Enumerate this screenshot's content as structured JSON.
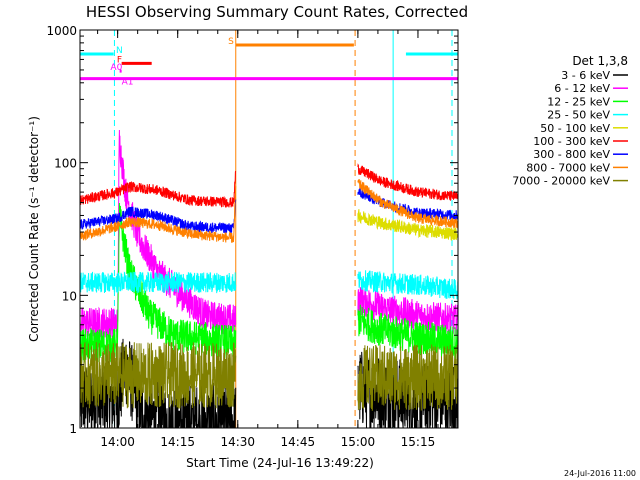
{
  "chart_data": {
    "type": "line",
    "title": "HESSI Observing Summary Count Rates, Corrected",
    "xlabel": "Start Time (24-Jul-16 13:49:22)",
    "ylabel": "Corrected Count Rate (s⁻¹ detector⁻¹)",
    "ylog": true,
    "xlim_minutes": [
      -4.4,
      34.4
    ],
    "ylim": [
      1,
      1000
    ],
    "x_ticks": [
      {
        "m": 0,
        "label": "14:00"
      },
      {
        "m": 15,
        "label": "14:15"
      },
      {
        "m": 30,
        "label": "14:30"
      },
      {
        "m": 45,
        "label": "14:45"
      },
      {
        "m": 60,
        "label": "15:00"
      },
      {
        "m": 75,
        "label": "15:15"
      }
    ],
    "y_ticks": [
      {
        "v": 1,
        "label": "1"
      },
      {
        "v": 10,
        "label": "10"
      },
      {
        "v": 100,
        "label": "100"
      },
      {
        "v": 1000,
        "label": "1000"
      }
    ],
    "legend_title": "Det 1,3,8",
    "legend_placement": "right",
    "series": [
      {
        "name": "3 - 6 keV",
        "color": "#000000",
        "seg1": [
          [
            -9.4,
            1.6
          ],
          [
            0,
            1.6
          ],
          [
            2,
            3
          ],
          [
            4,
            2
          ],
          [
            6,
            1.3
          ],
          [
            8,
            1.2
          ],
          [
            14,
            1.1
          ],
          [
            29.5,
            1.1
          ]
        ],
        "seg2": [
          [
            60,
            2.0
          ],
          [
            66,
            1.8
          ],
          [
            75,
            1.6
          ],
          [
            85,
            1.6
          ]
        ],
        "noise": 0.3
      },
      {
        "name": "6 - 12 keV",
        "color": "#ff00ff",
        "seg1": [
          [
            -9.4,
            6.2
          ],
          [
            0,
            6.2
          ],
          [
            0.4,
            150
          ],
          [
            2,
            60
          ],
          [
            5,
            28
          ],
          [
            10,
            15
          ],
          [
            16,
            10
          ],
          [
            22,
            7
          ],
          [
            29.5,
            6.5
          ]
        ],
        "seg2": [
          [
            60,
            9.5
          ],
          [
            66,
            8
          ],
          [
            75,
            7
          ],
          [
            85,
            6.5
          ]
        ],
        "noise": 0.12
      },
      {
        "name": "12 - 25 keV",
        "color": "#00ff00",
        "seg1": [
          [
            -9.4,
            4.2
          ],
          [
            0,
            4.2
          ],
          [
            0.4,
            40
          ],
          [
            3,
            15
          ],
          [
            8,
            7
          ],
          [
            14,
            5
          ],
          [
            29.5,
            4.4
          ]
        ],
        "seg2": [
          [
            60,
            6.5
          ],
          [
            66,
            5.5
          ],
          [
            75,
            4.8
          ],
          [
            85,
            4.4
          ]
        ],
        "noise": 0.13
      },
      {
        "name": "25 - 50 keV",
        "color": "#00ffff",
        "seg1": [
          [
            -9.4,
            12.5
          ],
          [
            29.5,
            12.5
          ]
        ],
        "seg2": [
          [
            60,
            13
          ],
          [
            75,
            12
          ],
          [
            85,
            11
          ]
        ],
        "noise": 0.08
      },
      {
        "name": "50 - 100 keV",
        "color": "#dddd00",
        "seg1": [],
        "seg2": [
          [
            60,
            40
          ],
          [
            66,
            35
          ],
          [
            75,
            31
          ],
          [
            85,
            29
          ]
        ],
        "noise": 0.05
      },
      {
        "name": "100 - 300 keV",
        "color": "#ff0000",
        "seg1": [
          [
            -9.4,
            52
          ],
          [
            0,
            60
          ],
          [
            3,
            66
          ],
          [
            10,
            62
          ],
          [
            18,
            52
          ],
          [
            29,
            50
          ],
          [
            29.5,
            90
          ]
        ],
        "seg2": [
          [
            60,
            90
          ],
          [
            66,
            72
          ],
          [
            75,
            60
          ],
          [
            85,
            55
          ]
        ],
        "noise": 0.04
      },
      {
        "name": "300 - 800 keV",
        "color": "#0000ff",
        "seg1": [
          [
            -9.4,
            34
          ],
          [
            0,
            38
          ],
          [
            3,
            43
          ],
          [
            10,
            40
          ],
          [
            18,
            33
          ],
          [
            29,
            32
          ],
          [
            29.5,
            55
          ]
        ],
        "seg2": [
          [
            60,
            60
          ],
          [
            66,
            50
          ],
          [
            75,
            42
          ],
          [
            85,
            40
          ]
        ],
        "noise": 0.04
      },
      {
        "name": "800 - 7000 keV",
        "color": "#ff8000",
        "seg1": [
          [
            -9.4,
            28
          ],
          [
            0,
            33
          ],
          [
            3,
            36
          ],
          [
            10,
            34
          ],
          [
            18,
            29
          ],
          [
            29,
            27
          ],
          [
            29.5,
            70
          ]
        ],
        "seg2": [
          [
            60,
            70
          ],
          [
            66,
            50
          ],
          [
            75,
            38
          ],
          [
            85,
            35
          ]
        ],
        "noise": 0.04
      },
      {
        "name": "7000 - 20000 keV",
        "color": "#808000",
        "seg1": [
          [
            -9.4,
            2.5
          ],
          [
            29.5,
            2.5
          ]
        ],
        "seg2": [
          [
            60,
            2.4
          ],
          [
            85,
            2.4
          ]
        ],
        "noise": 0.25
      }
    ],
    "flags": [
      {
        "label": "N",
        "color": "#00ffff",
        "segments": [
          [
            -9.4,
            -1
          ],
          [
            72,
            85
          ]
        ],
        "level": 660
      },
      {
        "label": "F",
        "color": "#ff0000",
        "segments": [
          [
            1,
            8.5
          ]
        ],
        "level": 560
      },
      {
        "label": "A0",
        "color": "#ff00ff",
        "segments": [
          [
            0.5,
            1
          ]
        ],
        "level": 490
      },
      {
        "label": "A1",
        "color": "#ff00ff",
        "segments": [
          [
            -9.4,
            85
          ]
        ],
        "level": 430
      },
      {
        "label": "S",
        "color": "#ff8000",
        "segments": [
          [
            29.5,
            59
          ]
        ],
        "level": 770
      }
    ],
    "vlines": [
      {
        "m": -0.8,
        "color": "#00ffff",
        "dash": true
      },
      {
        "m": 29.5,
        "color": "#ff8000",
        "dash": false
      },
      {
        "m": 59.3,
        "color": "#ff8000",
        "dash": true
      },
      {
        "m": 68.8,
        "color": "#00ffff",
        "dash": false
      },
      {
        "m": 83.5,
        "color": "#00ffff",
        "dash": true
      }
    ],
    "footer_timestamp": "24-Jul-2016 11:00"
  }
}
